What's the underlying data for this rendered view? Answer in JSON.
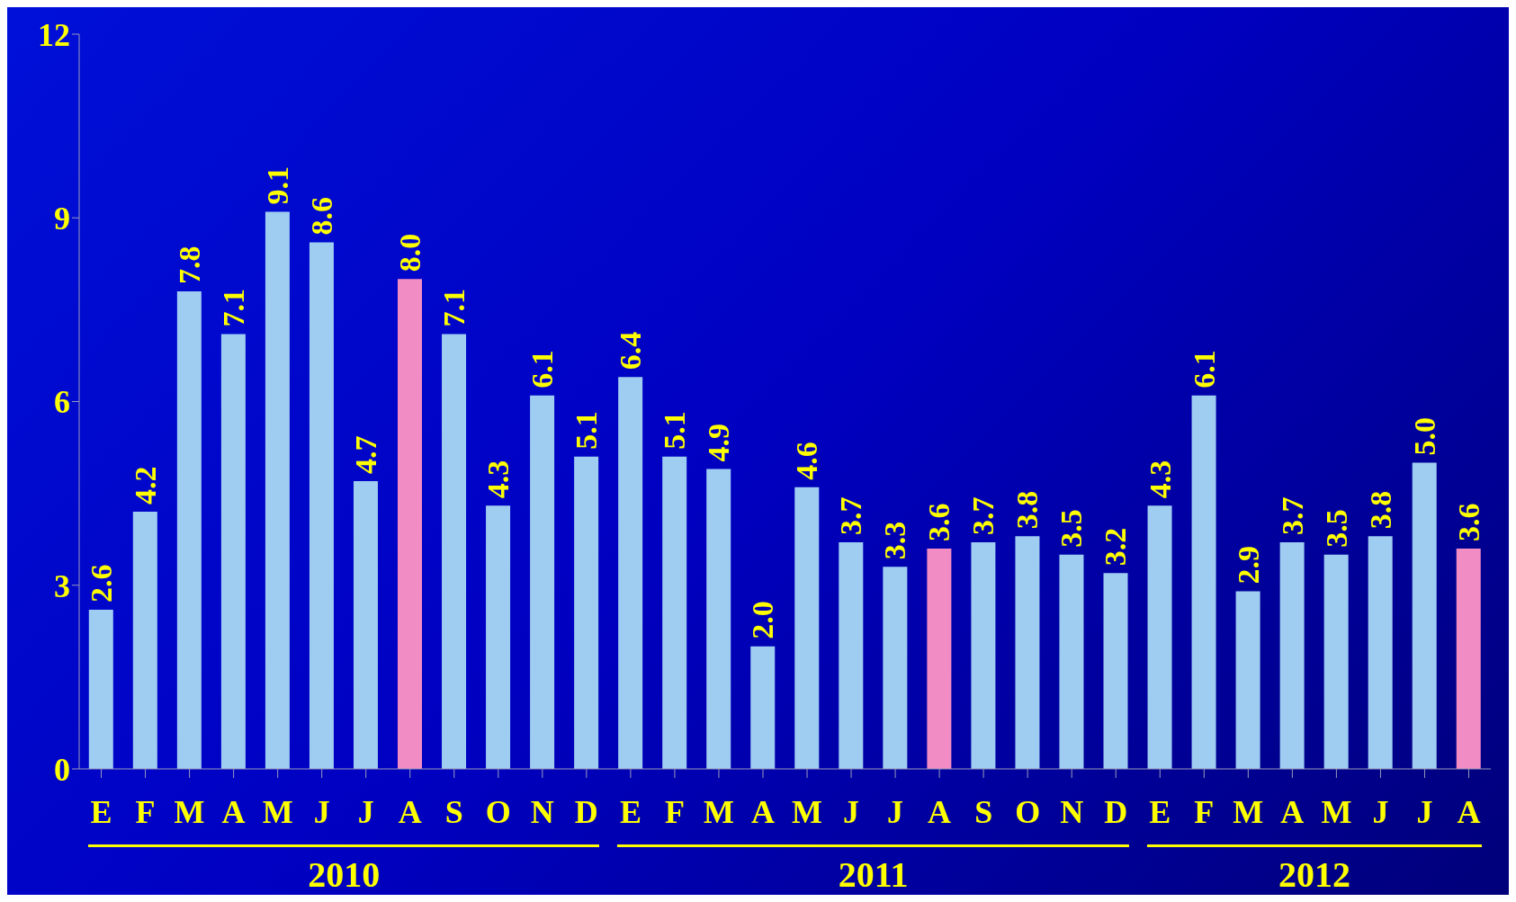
{
  "chart_data": {
    "type": "bar",
    "categories": [
      "E",
      "F",
      "M",
      "A",
      "M",
      "J",
      "J",
      "A",
      "S",
      "O",
      "N",
      "D",
      "E",
      "F",
      "M",
      "A",
      "M",
      "J",
      "J",
      "A",
      "S",
      "O",
      "N",
      "D",
      "E",
      "F",
      "M",
      "A",
      "M",
      "J",
      "J",
      "A"
    ],
    "values": [
      2.6,
      4.2,
      7.8,
      7.1,
      9.1,
      8.6,
      4.7,
      8.0,
      7.1,
      4.3,
      6.1,
      5.1,
      6.4,
      5.1,
      4.9,
      2.0,
      4.6,
      3.7,
      3.3,
      3.6,
      3.7,
      3.8,
      3.5,
      3.2,
      4.3,
      6.1,
      2.9,
      3.7,
      3.5,
      3.8,
      5.0,
      3.6
    ],
    "value_labels": [
      "2.6",
      "4.2",
      "7.8",
      "7.1",
      "9.1",
      "8.6",
      "4.7",
      "8.0",
      "7.1",
      "4.3",
      "6.1",
      "5.1",
      "6.4",
      "5.1",
      "4.9",
      "2.0",
      "4.6",
      "3.7",
      "3.3",
      "3.6",
      "3.7",
      "3.8",
      "3.5",
      "3.2",
      "4.3",
      "6.1",
      "2.9",
      "3.7",
      "3.5",
      "3.8",
      "5.0",
      "3.6"
    ],
    "colors": [
      "#9fcdf2",
      "#9fcdf2",
      "#9fcdf2",
      "#9fcdf2",
      "#9fcdf2",
      "#9fcdf2",
      "#9fcdf2",
      "#f28cc4",
      "#9fcdf2",
      "#9fcdf2",
      "#9fcdf2",
      "#9fcdf2",
      "#9fcdf2",
      "#9fcdf2",
      "#9fcdf2",
      "#9fcdf2",
      "#9fcdf2",
      "#9fcdf2",
      "#9fcdf2",
      "#f28cc4",
      "#9fcdf2",
      "#9fcdf2",
      "#9fcdf2",
      "#9fcdf2",
      "#9fcdf2",
      "#9fcdf2",
      "#9fcdf2",
      "#9fcdf2",
      "#9fcdf2",
      "#9fcdf2",
      "#9fcdf2",
      "#f28cc4"
    ],
    "ylim": [
      0,
      12
    ],
    "yticks": [
      0,
      3,
      6,
      9,
      12
    ],
    "grid": false,
    "legend": false,
    "annotations": [
      "2010",
      "2011",
      "2012"
    ]
  }
}
